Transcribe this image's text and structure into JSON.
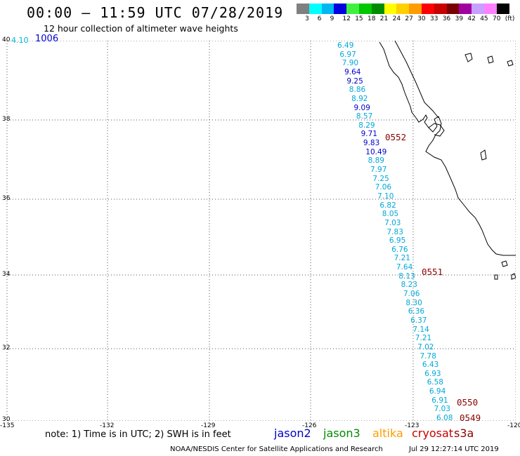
{
  "header": {
    "title": "00:00 – 11:59 UTC 07/28/2019",
    "subtitle": "12 hour collection of altimeter wave heights"
  },
  "legend": {
    "colors": [
      "#808080",
      "#00ffff",
      "#00b8f0",
      "#0000e0",
      "#40f040",
      "#00c800",
      "#008c00",
      "#ffff00",
      "#ffd000",
      "#ff9c00",
      "#ff0000",
      "#c80000",
      "#7a0000",
      "#a000a0",
      "#c8a0ff",
      "#ff80ff",
      "#000000"
    ],
    "ticks": [
      "3",
      "6",
      "9",
      "12",
      "15",
      "18",
      "21",
      "24",
      "27",
      "30",
      "33",
      "36",
      "39",
      "42",
      "45",
      "70",
      "(ft)"
    ]
  },
  "axes": {
    "lat_labels": [
      "40",
      "38",
      "36",
      "34",
      "32",
      "30"
    ],
    "lon_labels": [
      "-135",
      "-132",
      "-129",
      "-126",
      "-123",
      "-120"
    ]
  },
  "corner": {
    "swh": "4.10",
    "time": "1006"
  },
  "wave_heights": [
    {
      "v": "6.49",
      "s": "jason2"
    },
    {
      "v": "6.97",
      "s": "jason2"
    },
    {
      "v": "7.90",
      "s": "jason2"
    },
    {
      "v": "9.64",
      "s": "jason2"
    },
    {
      "v": "9.25",
      "s": "jason2"
    },
    {
      "v": "8.86",
      "s": "jason2"
    },
    {
      "v": "8.92",
      "s": "jason2"
    },
    {
      "v": "9.09",
      "s": "jason2"
    },
    {
      "v": "8.57",
      "s": "jason2"
    },
    {
      "v": "8.29",
      "s": "jason2"
    },
    {
      "v": "9.71",
      "s": "jason2"
    },
    {
      "v": "9.83",
      "s": "jason2"
    },
    {
      "v": "10.49",
      "s": "jason2"
    },
    {
      "v": "8.89",
      "s": "jason2"
    },
    {
      "v": "7.97",
      "s": "jason2"
    },
    {
      "v": "7.25",
      "s": "jason2"
    },
    {
      "v": "7.06",
      "s": "jason2"
    },
    {
      "v": "7.10",
      "s": "jason2"
    },
    {
      "v": "6.82",
      "s": "jason2"
    },
    {
      "v": "8.05",
      "s": "jason2"
    },
    {
      "v": "7.03",
      "s": "jason2"
    },
    {
      "v": "7.83",
      "s": "jason2"
    },
    {
      "v": "6.95",
      "s": "jason2"
    },
    {
      "v": "6.76",
      "s": "jason2"
    },
    {
      "v": "7.21",
      "s": "jason2"
    },
    {
      "v": "7.64",
      "s": "jason2"
    },
    {
      "v": "8.13",
      "s": "jason2"
    },
    {
      "v": "8.23",
      "s": "jason2"
    },
    {
      "v": "7.06",
      "s": "jason2"
    },
    {
      "v": "8.30",
      "s": "jason2"
    },
    {
      "v": "6.36",
      "s": "jason2"
    },
    {
      "v": "6.37",
      "s": "jason2"
    },
    {
      "v": "7.14",
      "s": "jason2"
    },
    {
      "v": "7.21",
      "s": "jason2"
    },
    {
      "v": "7.02",
      "s": "jason2"
    },
    {
      "v": "7.78",
      "s": "jason2"
    },
    {
      "v": "6.43",
      "s": "jason2"
    },
    {
      "v": "6.93",
      "s": "jason2"
    },
    {
      "v": "6.58",
      "s": "jason2"
    },
    {
      "v": "6.94",
      "s": "jason2"
    },
    {
      "v": "6.91",
      "s": "jason2"
    },
    {
      "v": "7.03",
      "s": "jason2"
    },
    {
      "v": "6.08",
      "s": "jason2"
    }
  ],
  "pass_times": [
    "0552",
    "0551",
    "0550",
    "0549"
  ],
  "footer": {
    "note": "note: 1) Time is in UTC; 2) SWH is in feet",
    "satellites": [
      {
        "name": "jason2",
        "color": "#0000cc"
      },
      {
        "name": "jason3",
        "color": "#008c00"
      },
      {
        "name": "altika",
        "color": "#ff9c00"
      },
      {
        "name": "cryosat",
        "color": "#c80000"
      },
      {
        "name": "s3a",
        "color": "#8b0000"
      }
    ],
    "credit": "NOAA/NESDIS Center for Satellite Applications and Research",
    "generated": "Jul 29 12:27:14 UTC 2019"
  }
}
